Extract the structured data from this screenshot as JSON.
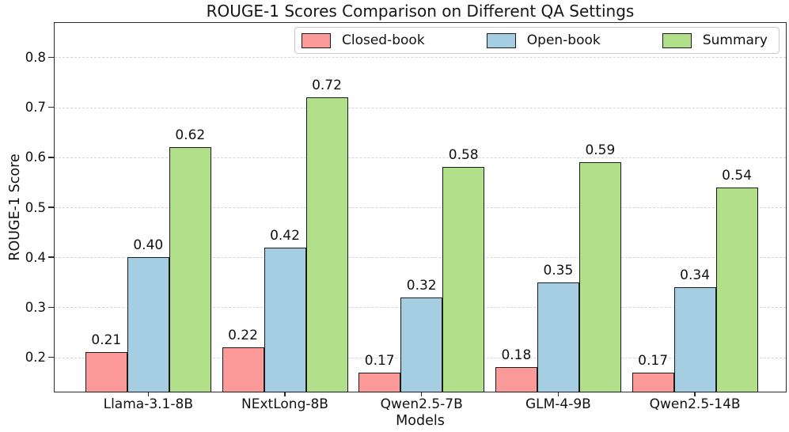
{
  "chart_data": {
    "type": "bar",
    "title": "ROUGE-1 Scores Comparison on Different QA Settings",
    "xlabel": "Models",
    "ylabel": "ROUGE-1 Score",
    "categories": [
      "Llama-3.1-8B",
      "NExtLong-8B",
      "Qwen2.5-7B",
      "GLM-4-9B",
      "Qwen2.5-14B"
    ],
    "series": [
      {
        "name": "Closed-book",
        "color": "#FB9A99",
        "values": [
          0.21,
          0.22,
          0.17,
          0.18,
          0.17
        ]
      },
      {
        "name": "Open-book",
        "color": "#A6CEE3",
        "values": [
          0.4,
          0.42,
          0.32,
          0.35,
          0.34
        ]
      },
      {
        "name": "Summary",
        "color": "#B2DF8A",
        "values": [
          0.62,
          0.72,
          0.58,
          0.59,
          0.54
        ]
      }
    ],
    "yticks": [
      0.2,
      0.3,
      0.4,
      0.5,
      0.6,
      0.7,
      0.8
    ],
    "ylim": [
      0.13,
      0.87
    ],
    "grid": "horizontal-dashed",
    "grid_color": "#d6d6d6",
    "bar_edge_color": "#1a1a1a",
    "background": "#ffffff",
    "legend_position": "top-center"
  }
}
